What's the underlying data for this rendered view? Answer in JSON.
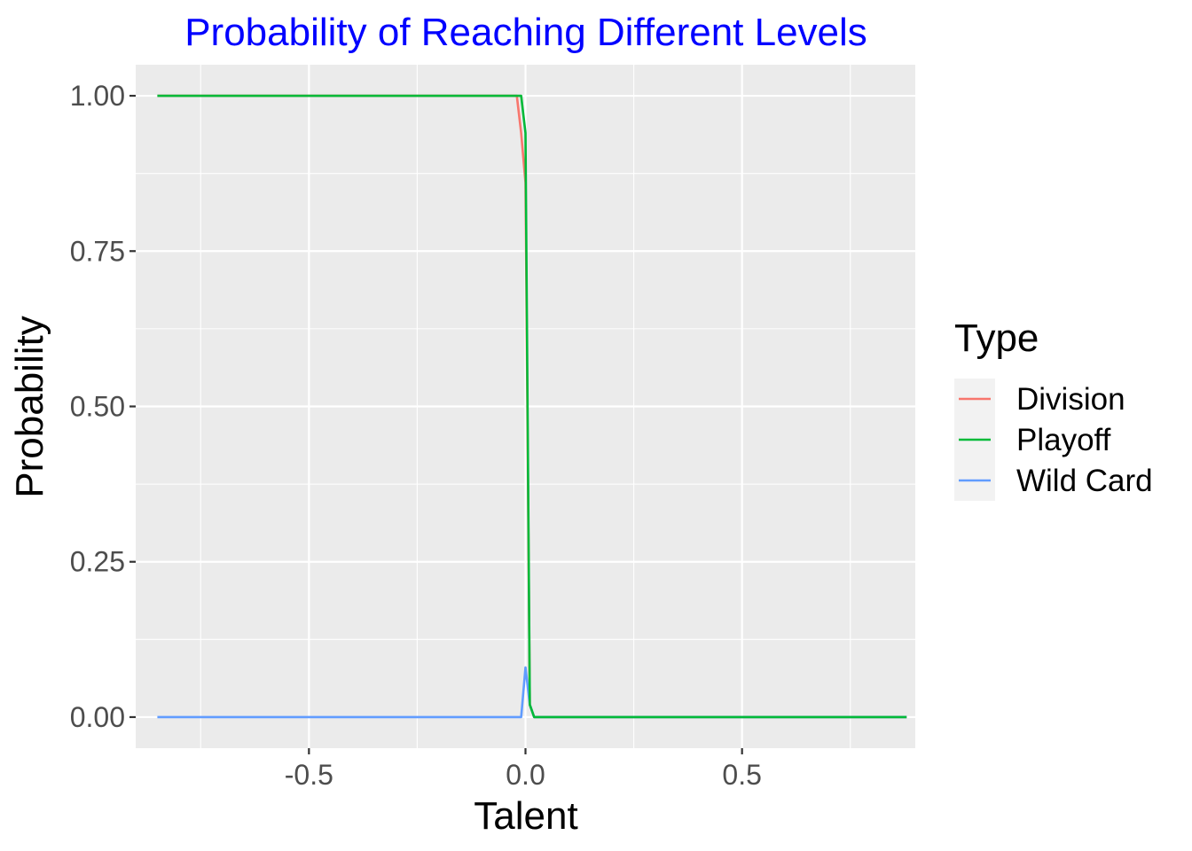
{
  "chart_data": {
    "type": "line",
    "title": "Probability of Reaching Different Levels",
    "xlabel": "Talent",
    "ylabel": "Probability",
    "xlim": [
      -0.9,
      0.9
    ],
    "ylim": [
      -0.05,
      1.05
    ],
    "x_ticks": [
      -0.5,
      0.0,
      0.5
    ],
    "x_tick_labels": [
      "-0.5",
      "0.0",
      "0.5"
    ],
    "y_ticks": [
      0.0,
      0.25,
      0.5,
      0.75,
      1.0
    ],
    "y_tick_labels": [
      "0.00",
      "0.25",
      "0.50",
      "0.75",
      "1.00"
    ],
    "grid": true,
    "legend": {
      "title": "Type",
      "position": "right"
    },
    "series": [
      {
        "name": "Division",
        "color": "#F8766D",
        "x": [
          -0.85,
          -0.02,
          -0.01,
          0.0,
          0.01,
          0.02,
          0.88
        ],
        "y": [
          1.0,
          1.0,
          0.94,
          0.86,
          0.02,
          0.0,
          0.0
        ]
      },
      {
        "name": "Playoff",
        "color": "#00BA38",
        "x": [
          -0.85,
          -0.02,
          -0.01,
          0.0,
          0.01,
          0.02,
          0.88
        ],
        "y": [
          1.0,
          1.0,
          1.0,
          0.94,
          0.02,
          0.0,
          0.0
        ]
      },
      {
        "name": "Wild Card",
        "color": "#619CFF",
        "x": [
          -0.85,
          -0.02,
          -0.01,
          0.0,
          0.01,
          0.02,
          0.88
        ],
        "y": [
          0.0,
          0.0,
          0.0,
          0.08,
          0.02,
          0.0,
          0.0
        ]
      }
    ]
  }
}
